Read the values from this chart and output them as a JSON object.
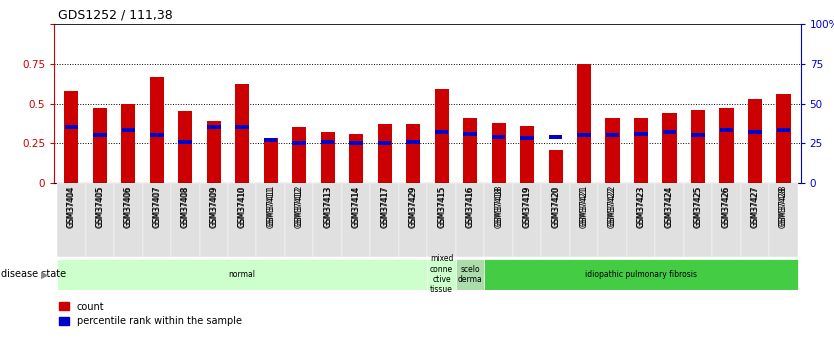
{
  "title": "GDS1252 / 111,38",
  "samples": [
    "GSM37404",
    "GSM37405",
    "GSM37406",
    "GSM37407",
    "GSM37408",
    "GSM37409",
    "GSM37410",
    "GSM37411",
    "GSM37412",
    "GSM37413",
    "GSM37414",
    "GSM37417",
    "GSM37429",
    "GSM37415",
    "GSM37416",
    "GSM37418",
    "GSM37419",
    "GSM37420",
    "GSM37421",
    "GSM37422",
    "GSM37423",
    "GSM37424",
    "GSM37425",
    "GSM37426",
    "GSM37427",
    "GSM37428"
  ],
  "count_values": [
    0.58,
    0.47,
    0.5,
    0.67,
    0.45,
    0.39,
    0.62,
    0.28,
    0.35,
    0.32,
    0.31,
    0.37,
    0.37,
    0.59,
    0.41,
    0.38,
    0.36,
    0.21,
    0.75,
    0.41,
    0.41,
    0.44,
    0.46,
    0.47,
    0.53,
    0.56
  ],
  "percentile_values": [
    0.35,
    0.3,
    0.33,
    0.3,
    0.26,
    0.35,
    0.35,
    0.27,
    0.25,
    0.26,
    0.25,
    0.25,
    0.26,
    0.32,
    0.31,
    0.29,
    0.28,
    0.29,
    0.3,
    0.3,
    0.31,
    0.32,
    0.3,
    0.33,
    0.32,
    0.33
  ],
  "groups": [
    {
      "label": "normal",
      "start": 0,
      "end": 13,
      "color": "#ccffcc"
    },
    {
      "label": "mixed\nconne\nctive\ntissue",
      "start": 13,
      "end": 14,
      "color": "#ccffcc"
    },
    {
      "label": "scelo\nderma",
      "start": 14,
      "end": 15,
      "color": "#aaddaa"
    },
    {
      "label": "idiopathic pulmonary fibrosis",
      "start": 15,
      "end": 26,
      "color": "#44cc44"
    }
  ],
  "bar_color": "#cc0000",
  "percentile_color": "#0000cc",
  "yticks": [
    0,
    0.25,
    0.5,
    0.75,
    1.0
  ],
  "ytick_labels_left": [
    "0",
    "0.25",
    "0.5",
    "0.75",
    ""
  ],
  "ytick_labels_right": [
    "0",
    "25",
    "50",
    "75",
    "100%"
  ],
  "left_axis_color": "#cc0000",
  "right_axis_color": "#0000cc",
  "bar_width": 0.5
}
